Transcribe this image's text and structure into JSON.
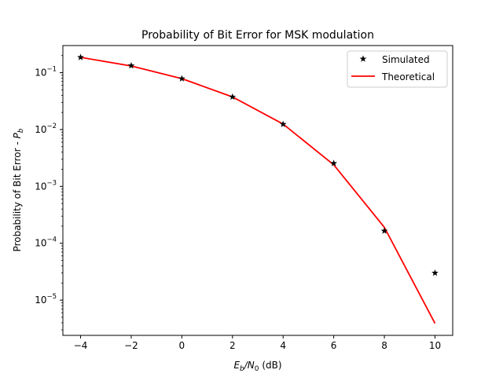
{
  "chart_data": {
    "type": "line",
    "title": "Probability of Bit Error for MSK modulation",
    "xlabel": {
      "base": "E",
      "sub1": "b",
      "mid": "/N",
      "sub2": "0",
      "tail": " (dB)"
    },
    "ylabel": {
      "text": "Probability of Bit Error - ",
      "var": "P",
      "sub": "b"
    },
    "x": [
      -4,
      -2,
      0,
      2,
      4,
      6,
      8,
      10
    ],
    "xlim": [
      -4.7,
      10.7
    ],
    "ylim": [
      2.4e-06,
      0.3
    ],
    "yscale": "log",
    "grid": false,
    "legend_position": "top-right",
    "xticks": [
      {
        "value": -4,
        "label": "−4"
      },
      {
        "value": -2,
        "label": "−2"
      },
      {
        "value": 0,
        "label": "0"
      },
      {
        "value": 2,
        "label": "2"
      },
      {
        "value": 4,
        "label": "4"
      },
      {
        "value": 6,
        "label": "6"
      },
      {
        "value": 8,
        "label": "8"
      },
      {
        "value": 10,
        "label": "10"
      }
    ],
    "yticks": [
      {
        "value": 0.1,
        "base": "10",
        "exp": "−1"
      },
      {
        "value": 0.01,
        "base": "10",
        "exp": "−2"
      },
      {
        "value": 0.001,
        "base": "10",
        "exp": "−3"
      },
      {
        "value": 0.0001,
        "base": "10",
        "exp": "−4"
      },
      {
        "value": 1e-05,
        "base": "10",
        "exp": "−5"
      }
    ],
    "series": [
      {
        "name": "Simulated",
        "style": "markers",
        "marker": "star",
        "color": "#000000",
        "values": [
          0.186,
          0.133,
          0.0785,
          0.0375,
          0.0124,
          0.00255,
          0.000165,
          3e-05
        ]
      },
      {
        "name": "Theoretical",
        "style": "line",
        "color": "#ff0000",
        "values": [
          0.186,
          0.131,
          0.0786,
          0.0375,
          0.0125,
          0.0024,
          0.000191,
          3.9e-06
        ]
      }
    ]
  }
}
